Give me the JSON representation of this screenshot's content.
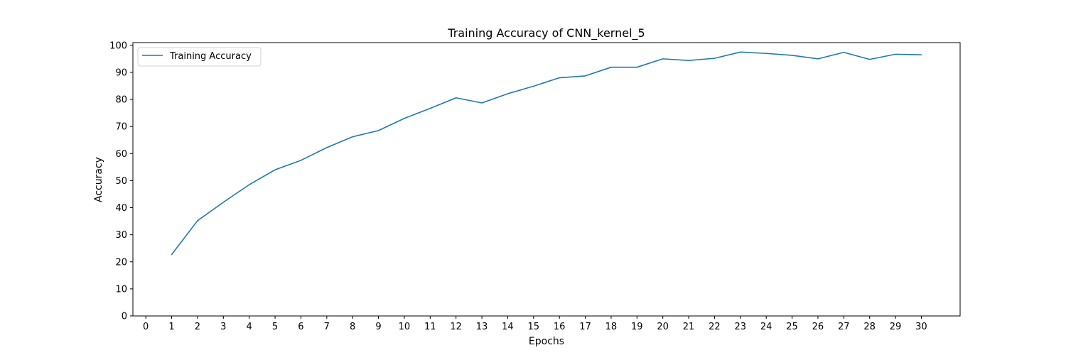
{
  "chart_data": {
    "type": "line",
    "title": "Training Accuracy of CNN_kernel_5",
    "xlabel": "Epochs",
    "ylabel": "Accuracy",
    "xlim": [
      -0.5,
      31.5
    ],
    "ylim": [
      0,
      101
    ],
    "xticks": [
      0,
      1,
      2,
      3,
      4,
      5,
      6,
      7,
      8,
      9,
      10,
      11,
      12,
      13,
      14,
      15,
      16,
      17,
      18,
      19,
      20,
      21,
      22,
      23,
      24,
      25,
      26,
      27,
      28,
      29,
      30
    ],
    "yticks": [
      0,
      10,
      20,
      30,
      40,
      50,
      60,
      70,
      80,
      90,
      100
    ],
    "grid": false,
    "legend_position": "top-left",
    "series": [
      {
        "name": "Training Accuracy",
        "color": "#1f77b4",
        "x": [
          1,
          2,
          3,
          4,
          5,
          6,
          7,
          8,
          9,
          10,
          11,
          12,
          13,
          14,
          15,
          16,
          17,
          18,
          19,
          20,
          21,
          22,
          23,
          24,
          25,
          26,
          27,
          28,
          29,
          30
        ],
        "y": [
          22.7,
          35.2,
          42.0,
          48.5,
          54.0,
          57.5,
          62.2,
          66.2,
          68.5,
          73.0,
          76.7,
          80.6,
          78.7,
          82.1,
          84.9,
          88.0,
          88.7,
          91.9,
          91.9,
          95.0,
          94.4,
          95.2,
          97.5,
          97.0,
          96.3,
          95.0,
          97.4,
          94.8,
          96.7,
          96.5
        ]
      }
    ]
  }
}
